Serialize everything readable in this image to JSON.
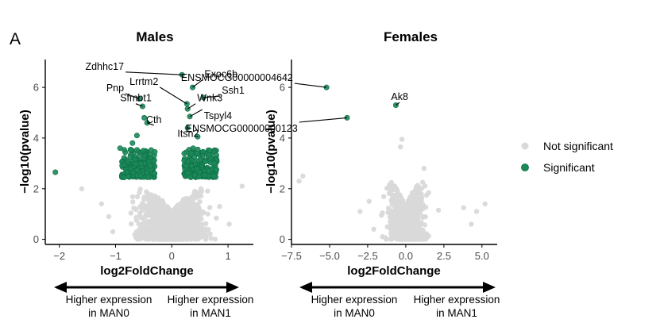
{
  "panel_letter": "A",
  "colors": {
    "significant": "#1b8a5a",
    "not_significant": "#d9d9d9",
    "axis": "#000000",
    "tick_text": "#4d4d4d"
  },
  "legend": {
    "items": [
      {
        "label": "Not significant",
        "color": "#d9d9d9"
      },
      {
        "label": "Significant",
        "color": "#1b8a5a"
      }
    ]
  },
  "annotations": {
    "males": {
      "left": [
        "Higher expression",
        "in MAN0"
      ],
      "right": [
        "Higher expression",
        "in MAN1"
      ]
    },
    "females": {
      "left": [
        "Higher expression",
        "in MAN0"
      ],
      "right": [
        "Higher expression",
        "in MAN1"
      ]
    }
  },
  "chart_data": [
    {
      "type": "scatter",
      "title": "Males",
      "xlabel": "log2FoldChange",
      "ylabel": "−log10(pvalue)",
      "xlim": [
        -2.25,
        1.45
      ],
      "ylim": [
        -0.2,
        7.1
      ],
      "xticks": [
        -2,
        -1,
        0,
        1
      ],
      "xtick_labels": [
        "−2",
        "−1",
        "0",
        "1"
      ],
      "yticks": [
        0,
        2,
        4,
        6
      ],
      "ytick_labels": [
        "0",
        "2",
        "4",
        "6"
      ],
      "labeled_points": [
        {
          "label": "Zdhhc17",
          "x": 0.18,
          "y": 6.5,
          "status": "significant",
          "label_x": -0.85,
          "label_y": 6.7
        },
        {
          "label": "Exoc6b",
          "x": 0.37,
          "y": 6.0,
          "status": "significant",
          "label_x": 0.58,
          "label_y": 6.4
        },
        {
          "label": "Ssh1",
          "x": 0.56,
          "y": 5.6,
          "status": "significant",
          "label_x": 0.89,
          "label_y": 5.75
        },
        {
          "label": "Pnp",
          "x": -0.58,
          "y": 5.55,
          "status": "significant",
          "label_x": -0.85,
          "label_y": 5.85
        },
        {
          "label": "Lrrtm2",
          "x": 0.27,
          "y": 5.35,
          "status": "significant",
          "label_x": -0.24,
          "label_y": 6.1
        },
        {
          "label": "Sfmbt1",
          "x": -0.52,
          "y": 5.25,
          "status": "significant",
          "label_x": -0.64,
          "label_y": 5.45
        },
        {
          "label": "Wnk3",
          "x": 0.28,
          "y": 5.15,
          "status": "significant",
          "label_x": 0.45,
          "label_y": 5.45
        },
        {
          "label": "Cth",
          "x": -0.44,
          "y": 4.6,
          "status": "significant",
          "label_x": -0.32,
          "label_y": 4.6
        },
        {
          "label": "Tspyl4",
          "x": 0.32,
          "y": 4.85,
          "status": "significant",
          "label_x": 0.57,
          "label_y": 4.75
        },
        {
          "label": "Itsn2",
          "x": 0.28,
          "y": 4.4,
          "status": "significant",
          "label_x": 0.29,
          "label_y": 4.05
        }
      ],
      "other_points": [
        {
          "x": -2.07,
          "y": 2.65,
          "status": "significant"
        },
        {
          "x": -0.92,
          "y": 3.6,
          "status": "significant"
        },
        {
          "x": -0.84,
          "y": 2.95,
          "status": "significant"
        },
        {
          "x": -0.77,
          "y": 2.5,
          "status": "significant"
        },
        {
          "x": -0.7,
          "y": 3.8,
          "status": "significant"
        },
        {
          "x": -0.62,
          "y": 4.1,
          "status": "significant"
        },
        {
          "x": -0.55,
          "y": 3.0,
          "status": "significant"
        },
        {
          "x": -0.49,
          "y": 4.8,
          "status": "significant"
        },
        {
          "x": -0.38,
          "y": 2.9,
          "status": "significant"
        },
        {
          "x": -0.31,
          "y": 2.6,
          "status": "significant"
        },
        {
          "x": 0.26,
          "y": 2.9,
          "status": "significant"
        },
        {
          "x": 0.38,
          "y": 3.6,
          "status": "significant"
        },
        {
          "x": 0.46,
          "y": 4.05,
          "status": "significant"
        },
        {
          "x": 0.55,
          "y": 3.3,
          "status": "significant"
        },
        {
          "x": 0.66,
          "y": 2.7,
          "status": "significant"
        },
        {
          "x": 0.75,
          "y": 2.5,
          "status": "significant"
        },
        {
          "x": -1.6,
          "y": 2.0,
          "status": "not significant"
        },
        {
          "x": -1.25,
          "y": 1.4,
          "status": "not significant"
        },
        {
          "x": -1.12,
          "y": 0.9,
          "status": "not significant"
        },
        {
          "x": -1.05,
          "y": 0.3,
          "status": "not significant"
        },
        {
          "x": 0.85,
          "y": 1.3,
          "status": "not significant"
        },
        {
          "x": 1.02,
          "y": 0.6,
          "status": "not significant"
        },
        {
          "x": 1.25,
          "y": 2.1,
          "status": "not significant"
        }
      ],
      "generated_clouds": [
        {
          "status": "significant",
          "count": 170,
          "x_from": -0.9,
          "x_to": -0.3,
          "y_from": 2.45,
          "y_to": 3.55,
          "side": "left",
          "seed": 11
        },
        {
          "status": "significant",
          "count": 170,
          "x_from": 0.22,
          "x_to": 0.8,
          "y_from": 2.45,
          "y_to": 3.55,
          "side": "right",
          "seed": 12
        },
        {
          "status": "not significant",
          "count": 1100,
          "x_from": -0.95,
          "x_to": 0.95,
          "y_from": 0,
          "y_to": 2.45,
          "shape": "volcano",
          "seed": 13
        }
      ]
    },
    {
      "type": "scatter",
      "title": "Females",
      "xlabel": "log2FoldChange",
      "ylabel": "−log10(pvalue)",
      "xlim": [
        -7.5,
        6.0
      ],
      "ylim": [
        -0.2,
        7.1
      ],
      "xticks": [
        -7.5,
        -5,
        -2.5,
        0,
        2.5,
        5
      ],
      "xtick_labels": [
        "−7.5",
        "−5.0",
        "−2.5",
        "0.0",
        "2.5",
        "5.0"
      ],
      "yticks": [
        0,
        2,
        4,
        6
      ],
      "ytick_labels": [
        "0",
        "2",
        "4",
        "6"
      ],
      "labeled_points": [
        {
          "label": "ENSMOCG00000004642",
          "x": -5.2,
          "y": 6.0,
          "status": "significant",
          "label_x": -7.4,
          "label_y": 6.25
        },
        {
          "label": "Ak8",
          "x": -0.65,
          "y": 5.3,
          "status": "significant",
          "label_x": -0.4,
          "label_y": 5.5
        },
        {
          "label": "ENSMOCG00000000123",
          "x": -3.85,
          "y": 4.8,
          "status": "significant",
          "label_x": -7.1,
          "label_y": 4.25
        }
      ],
      "other_points": [
        {
          "x": -7.0,
          "y": 2.3,
          "status": "not significant"
        },
        {
          "x": -6.75,
          "y": 2.5,
          "status": "not significant"
        },
        {
          "x": -3.0,
          "y": 1.1,
          "status": "not significant"
        },
        {
          "x": -2.4,
          "y": 1.5,
          "status": "not significant"
        },
        {
          "x": -2.1,
          "y": 0.4,
          "status": "not significant"
        },
        {
          "x": -0.35,
          "y": 3.65,
          "status": "not significant"
        },
        {
          "x": -0.25,
          "y": 3.95,
          "status": "not significant"
        },
        {
          "x": 1.2,
          "y": 2.8,
          "status": "not significant"
        },
        {
          "x": 2.15,
          "y": 1.15,
          "status": "not significant"
        },
        {
          "x": 3.8,
          "y": 1.25,
          "status": "not significant"
        },
        {
          "x": 4.65,
          "y": 1.1,
          "status": "not significant"
        },
        {
          "x": 5.2,
          "y": 1.4,
          "status": "not significant"
        },
        {
          "x": 4.3,
          "y": 0.6,
          "status": "not significant"
        }
      ],
      "generated_clouds": [
        {
          "status": "not significant",
          "count": 850,
          "x_from": -1.9,
          "x_to": 1.9,
          "y_from": 0,
          "y_to": 2.8,
          "shape": "volcano",
          "seed": 21
        }
      ]
    }
  ]
}
